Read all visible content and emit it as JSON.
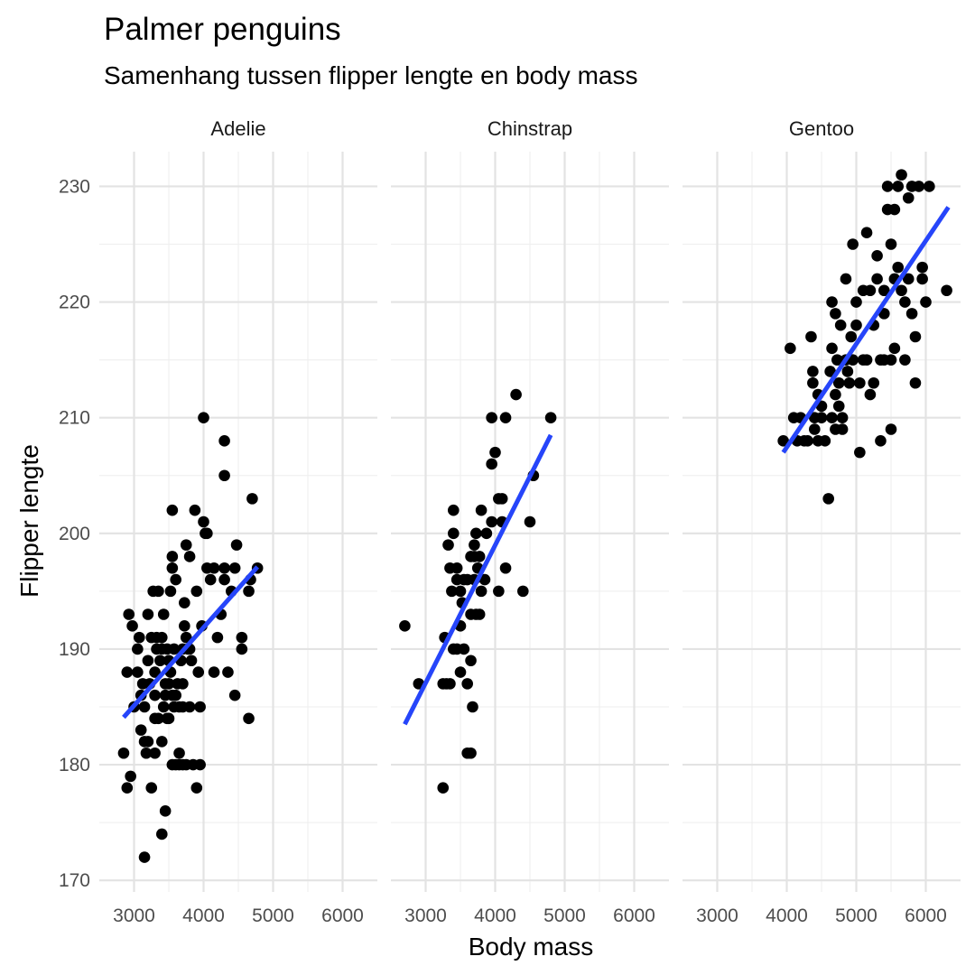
{
  "chart_data": {
    "type": "scatter",
    "title": "Palmer penguins",
    "subtitle": "Samenhang tussen flipper lengte en body mass",
    "xlabel": "Body mass",
    "ylabel": "Flipper lengte",
    "xlim": [
      2500,
      6500
    ],
    "ylim": [
      169,
      233
    ],
    "x_ticks": [
      3000,
      4000,
      5000,
      6000
    ],
    "y_ticks": [
      170,
      180,
      190,
      200,
      210,
      220,
      230
    ],
    "grid": true,
    "point_color": "#000000",
    "trend_color": "#2645FA",
    "facets": [
      {
        "name": "Adelie",
        "trend": {
          "x": [
            2850,
            4775
          ],
          "y": [
            184.1,
            197.1
          ]
        },
        "points": [
          [
            2850,
            181
          ],
          [
            2900,
            178
          ],
          [
            2900,
            188
          ],
          [
            2925,
            193
          ],
          [
            2950,
            179
          ],
          [
            2975,
            192
          ],
          [
            3000,
            185
          ],
          [
            3050,
            190
          ],
          [
            3050,
            188
          ],
          [
            3075,
            191
          ],
          [
            3100,
            186
          ],
          [
            3100,
            183
          ],
          [
            3125,
            187
          ],
          [
            3150,
            172
          ],
          [
            3150,
            182
          ],
          [
            3150,
            185
          ],
          [
            3175,
            181
          ],
          [
            3200,
            189
          ],
          [
            3200,
            182
          ],
          [
            3200,
            193
          ],
          [
            3225,
            187
          ],
          [
            3250,
            178
          ],
          [
            3250,
            191
          ],
          [
            3275,
            195
          ],
          [
            3300,
            181
          ],
          [
            3300,
            186
          ],
          [
            3300,
            188
          ],
          [
            3300,
            184
          ],
          [
            3325,
            190
          ],
          [
            3325,
            191
          ],
          [
            3350,
            195
          ],
          [
            3350,
            184
          ],
          [
            3375,
            189
          ],
          [
            3400,
            174
          ],
          [
            3400,
            182
          ],
          [
            3400,
            190
          ],
          [
            3400,
            191
          ],
          [
            3425,
            185
          ],
          [
            3425,
            193
          ],
          [
            3450,
            176
          ],
          [
            3450,
            186
          ],
          [
            3450,
            187
          ],
          [
            3475,
            184
          ],
          [
            3475,
            190
          ],
          [
            3500,
            184
          ],
          [
            3500,
            187
          ],
          [
            3500,
            189
          ],
          [
            3525,
            195
          ],
          [
            3525,
            188
          ],
          [
            3550,
            180
          ],
          [
            3550,
            186
          ],
          [
            3550,
            197
          ],
          [
            3550,
            198
          ],
          [
            3550,
            202
          ],
          [
            3575,
            190
          ],
          [
            3575,
            185
          ],
          [
            3600,
            180
          ],
          [
            3600,
            196
          ],
          [
            3600,
            186
          ],
          [
            3625,
            187
          ],
          [
            3650,
            181
          ],
          [
            3650,
            180
          ],
          [
            3650,
            185
          ],
          [
            3675,
            189
          ],
          [
            3700,
            185
          ],
          [
            3700,
            190
          ],
          [
            3700,
            180
          ],
          [
            3700,
            187
          ],
          [
            3725,
            192
          ],
          [
            3725,
            194
          ],
          [
            3750,
            199
          ],
          [
            3750,
            180
          ],
          [
            3750,
            191
          ],
          [
            3775,
            190
          ],
          [
            3800,
            190
          ],
          [
            3800,
            185
          ],
          [
            3800,
            198
          ],
          [
            3825,
            189
          ],
          [
            3850,
            180
          ],
          [
            3875,
            202
          ],
          [
            3900,
            178
          ],
          [
            3900,
            195
          ],
          [
            3925,
            188
          ],
          [
            3950,
            185
          ],
          [
            3950,
            180
          ],
          [
            3975,
            192
          ],
          [
            4000,
            210
          ],
          [
            4000,
            201
          ],
          [
            4025,
            200
          ],
          [
            4050,
            197
          ],
          [
            4050,
            200
          ],
          [
            4100,
            196
          ],
          [
            4150,
            188
          ],
          [
            4150,
            197
          ],
          [
            4200,
            191
          ],
          [
            4250,
            193
          ],
          [
            4300,
            196
          ],
          [
            4300,
            197
          ],
          [
            4300,
            208
          ],
          [
            4300,
            205
          ],
          [
            4350,
            188
          ],
          [
            4400,
            195
          ],
          [
            4450,
            197
          ],
          [
            4450,
            186
          ],
          [
            4475,
            199
          ],
          [
            4550,
            191
          ],
          [
            4550,
            190
          ],
          [
            4650,
            184
          ],
          [
            4650,
            195
          ],
          [
            4675,
            196
          ],
          [
            4700,
            203
          ],
          [
            4775,
            197
          ]
        ]
      },
      {
        "name": "Chinstrap",
        "trend": {
          "x": [
            2700,
            4800
          ],
          "y": [
            183.5,
            208.5
          ]
        },
        "points": [
          [
            2700,
            192
          ],
          [
            2900,
            187
          ],
          [
            3250,
            187
          ],
          [
            3250,
            178
          ],
          [
            3275,
            191
          ],
          [
            3300,
            187
          ],
          [
            3325,
            199
          ],
          [
            3350,
            187
          ],
          [
            3350,
            197
          ],
          [
            3375,
            195
          ],
          [
            3400,
            202
          ],
          [
            3400,
            200
          ],
          [
            3400,
            190
          ],
          [
            3450,
            196
          ],
          [
            3450,
            190
          ],
          [
            3450,
            197
          ],
          [
            3500,
            195
          ],
          [
            3500,
            188
          ],
          [
            3500,
            192
          ],
          [
            3525,
            194
          ],
          [
            3550,
            190
          ],
          [
            3550,
            196
          ],
          [
            3600,
            187
          ],
          [
            3600,
            181
          ],
          [
            3600,
            196
          ],
          [
            3650,
            189
          ],
          [
            3650,
            181
          ],
          [
            3650,
            198
          ],
          [
            3650,
            193
          ],
          [
            3675,
            185
          ],
          [
            3700,
            199
          ],
          [
            3700,
            198
          ],
          [
            3700,
            196
          ],
          [
            3725,
            200
          ],
          [
            3725,
            193
          ],
          [
            3750,
            197
          ],
          [
            3775,
            193
          ],
          [
            3775,
            198
          ],
          [
            3800,
            202
          ],
          [
            3800,
            195
          ],
          [
            3850,
            196
          ],
          [
            3875,
            200
          ],
          [
            3950,
            210
          ],
          [
            3950,
            201
          ],
          [
            3950,
            206
          ],
          [
            4000,
            207
          ],
          [
            4050,
            203
          ],
          [
            4050,
            195
          ],
          [
            4100,
            203
          ],
          [
            4100,
            201
          ],
          [
            4150,
            197
          ],
          [
            4150,
            210
          ],
          [
            4300,
            212
          ],
          [
            4400,
            195
          ],
          [
            4500,
            201
          ],
          [
            4550,
            205
          ],
          [
            4800,
            210
          ]
        ]
      },
      {
        "name": "Gentoo",
        "trend": {
          "x": [
            3950,
            6325
          ],
          "y": [
            207.0,
            228.2
          ]
        },
        "points": [
          [
            3950,
            208
          ],
          [
            4050,
            216
          ],
          [
            4100,
            210
          ],
          [
            4150,
            208
          ],
          [
            4200,
            210
          ],
          [
            4250,
            208
          ],
          [
            4300,
            208
          ],
          [
            4350,
            217
          ],
          [
            4375,
            214
          ],
          [
            4375,
            213
          ],
          [
            4400,
            210
          ],
          [
            4400,
            209
          ],
          [
            4450,
            208
          ],
          [
            4450,
            212
          ],
          [
            4500,
            210
          ],
          [
            4500,
            211
          ],
          [
            4550,
            208
          ],
          [
            4600,
            203
          ],
          [
            4625,
            214
          ],
          [
            4650,
            210
          ],
          [
            4650,
            216
          ],
          [
            4650,
            220
          ],
          [
            4700,
            212
          ],
          [
            4700,
            209
          ],
          [
            4700,
            219
          ],
          [
            4725,
            215
          ],
          [
            4750,
            213
          ],
          [
            4750,
            211
          ],
          [
            4775,
            218
          ],
          [
            4800,
            210
          ],
          [
            4800,
            209
          ],
          [
            4850,
            215
          ],
          [
            4850,
            222
          ],
          [
            4875,
            214
          ],
          [
            4900,
            213
          ],
          [
            4925,
            217
          ],
          [
            4950,
            215
          ],
          [
            4950,
            225
          ],
          [
            5000,
            218
          ],
          [
            5000,
            220
          ],
          [
            5050,
            207
          ],
          [
            5050,
            213
          ],
          [
            5100,
            215
          ],
          [
            5100,
            221
          ],
          [
            5150,
            226
          ],
          [
            5150,
            215
          ],
          [
            5200,
            212
          ],
          [
            5200,
            221
          ],
          [
            5250,
            218
          ],
          [
            5250,
            213
          ],
          [
            5300,
            222
          ],
          [
            5300,
            224
          ],
          [
            5350,
            208
          ],
          [
            5350,
            215
          ],
          [
            5400,
            219
          ],
          [
            5400,
            221
          ],
          [
            5400,
            215
          ],
          [
            5450,
            230
          ],
          [
            5450,
            228
          ],
          [
            5500,
            215
          ],
          [
            5500,
            209
          ],
          [
            5500,
            225
          ],
          [
            5550,
            216
          ],
          [
            5550,
            228
          ],
          [
            5550,
            222
          ],
          [
            5600,
            230
          ],
          [
            5600,
            223
          ],
          [
            5650,
            221
          ],
          [
            5650,
            231
          ],
          [
            5700,
            215
          ],
          [
            5700,
            220
          ],
          [
            5750,
            229
          ],
          [
            5750,
            222
          ],
          [
            5800,
            230
          ],
          [
            5800,
            219
          ],
          [
            5850,
            213
          ],
          [
            5850,
            217
          ],
          [
            5900,
            230
          ],
          [
            5950,
            223
          ],
          [
            5950,
            222
          ],
          [
            6000,
            220
          ],
          [
            6050,
            230
          ],
          [
            6300,
            221
          ]
        ]
      }
    ]
  }
}
